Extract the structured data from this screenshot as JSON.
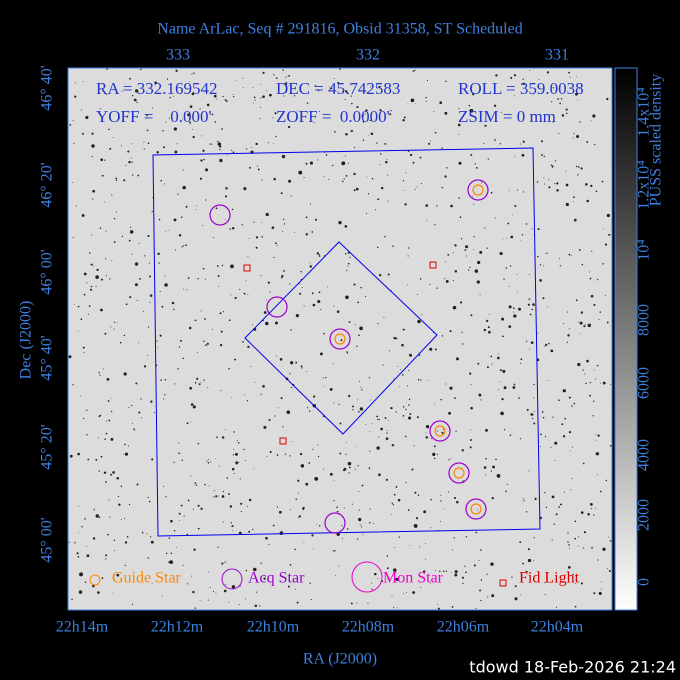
{
  "title": "Name ArLac, Seq # 291816, Obsid 31358, ST Scheduled",
  "info": [
    "RA = 332.169542",
    "DEC = 45.742583",
    "ROLL = 359.0038",
    "YOFF =    0.000'",
    "ZOFF =  0.0000'",
    "ZSIM = 0 mm"
  ],
  "top_ticks": [
    "333",
    "332",
    "331"
  ],
  "bottom_ticks": [
    "22h14m",
    "22h12m",
    "22h10m",
    "22h08m",
    "22h06m",
    "22h04m"
  ],
  "left_ticks": [
    "46° 40'",
    "46° 20'",
    "46° 00'",
    "45° 40'",
    "45° 20'",
    "45° 00'"
  ],
  "x_label": "RA (J2000)",
  "y_label": "Dec (J2000)",
  "legend": [
    "Guide Star",
    "Acq Star",
    "Mon Star",
    "Fid Light"
  ],
  "colorbar_ticks": [
    "0",
    "2000",
    "4000",
    "6000",
    "8000",
    "10⁴",
    "1.2x10⁴",
    "1.4x10⁴"
  ],
  "colorbar_label": "PUSS scaled density",
  "footer": "tdowd 18-Feb-2026 21:24"
}
